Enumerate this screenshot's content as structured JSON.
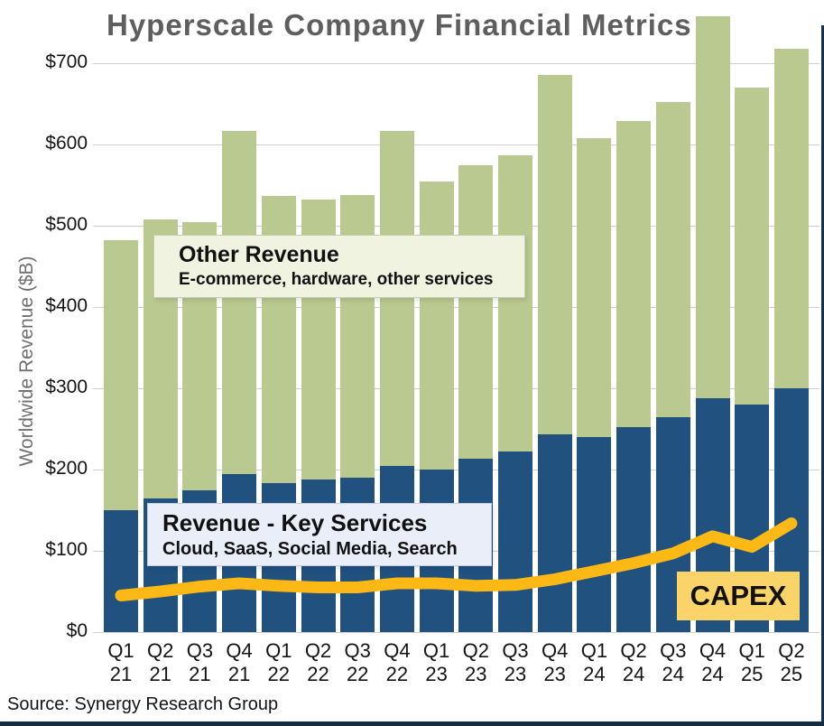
{
  "title": "Hyperscale Company Financial Metrics",
  "source": "Source: Synergy Research Group",
  "y_axis": {
    "title": "Worldwide Revenue ($B)",
    "tick_labels": [
      "$0",
      "$100",
      "$200",
      "$300",
      "$400",
      "$500",
      "$600",
      "$700"
    ]
  },
  "annotations": {
    "other_revenue": {
      "title": "Other Revenue",
      "subtitle": "E-commerce, hardware, other services"
    },
    "key_services": {
      "title": "Revenue - Key Services",
      "subtitle": "Cloud, SaaS, Social Media, Search"
    },
    "capex": {
      "label": "CAPEX"
    }
  },
  "colors": {
    "key_services_bar": "#20517f",
    "other_revenue_bar": "#b9c98f",
    "capex_line": "#fcb814",
    "capex_box": "#fad468",
    "title_gray": "#5e5e5e",
    "gridline": "#cfcfcf"
  },
  "chart_data": {
    "type": "bar",
    "subtype": "stacked-bars-with-line-overlay",
    "title": "Hyperscale Company Financial Metrics",
    "ylabel": "Worldwide Revenue ($B)",
    "xlabel": "",
    "ylim": [
      0,
      760
    ],
    "yticks": [
      0,
      100,
      200,
      300,
      400,
      500,
      600,
      700
    ],
    "grid": "horizontal",
    "legend_position": "inline-annotation-boxes",
    "categories": [
      "Q1 21",
      "Q2 21",
      "Q3 21",
      "Q4 21",
      "Q1 22",
      "Q2 22",
      "Q3 22",
      "Q4 22",
      "Q1 23",
      "Q2 23",
      "Q3 23",
      "Q4 23",
      "Q1 24",
      "Q2 24",
      "Q3 24",
      "Q4 24",
      "Q1 25",
      "Q2 25"
    ],
    "series": [
      {
        "name": "Revenue - Key Services",
        "description": "Cloud, SaaS, Social Media, Search",
        "type": "bar",
        "stacked": true,
        "color": "#20517f",
        "values": [
          150,
          165,
          175,
          195,
          183,
          188,
          190,
          205,
          200,
          213,
          222,
          243,
          240,
          252,
          265,
          288,
          280,
          300
        ]
      },
      {
        "name": "Other Revenue",
        "description": "E-commerce, hardware, other services",
        "type": "bar",
        "stacked": true,
        "color": "#b9c98f",
        "values": [
          333,
          343,
          330,
          422,
          354,
          345,
          348,
          412,
          355,
          362,
          365,
          443,
          368,
          377,
          388,
          470,
          391,
          418
        ]
      },
      {
        "name": "CAPEX",
        "type": "line",
        "color": "#fcb814",
        "values": [
          45,
          50,
          56,
          60,
          57,
          55,
          55,
          60,
          60,
          57,
          58,
          65,
          75,
          85,
          97,
          118,
          105,
          134
        ]
      }
    ]
  }
}
